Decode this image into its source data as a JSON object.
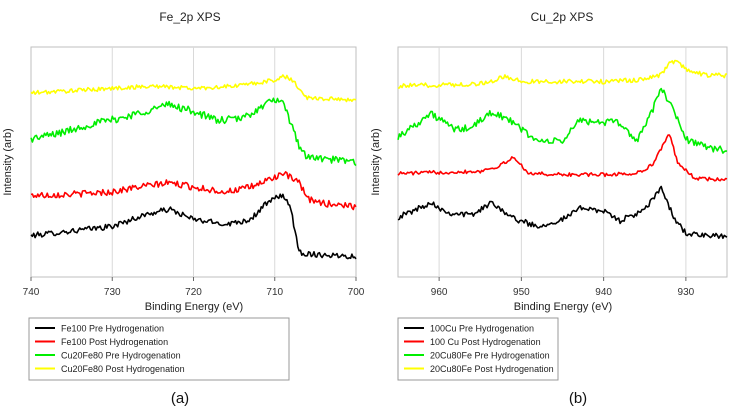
{
  "chart_data": [
    {
      "type": "line",
      "title": "Fe_2p XPS",
      "xlabel": "Binding Energy (eV)",
      "ylabel": "Intensity (arb)",
      "xlim": [
        740,
        700
      ],
      "x_reversed": true,
      "xticks": [
        "740",
        "730",
        "720",
        "710",
        "700"
      ],
      "ylim": [
        0,
        10
      ],
      "grid": true,
      "panel_label": "(a)",
      "legend_position": "bottom-below",
      "series": [
        {
          "name": "Fe100 Pre Hydrogenation",
          "color": "#000000",
          "noise": 0.12,
          "x": [
            740,
            735,
            730,
            726,
            723,
            720,
            716,
            713,
            711,
            709,
            708,
            707,
            706,
            703,
            700
          ],
          "y": [
            1.8,
            2.0,
            2.2,
            2.7,
            2.95,
            2.5,
            2.3,
            2.5,
            3.2,
            3.6,
            2.9,
            1.1,
            1.0,
            0.95,
            0.9
          ]
        },
        {
          "name": "Fe100 Post Hydrogenation",
          "color": "#ff0000",
          "noise": 0.14,
          "x": [
            740,
            735,
            730,
            727,
            723,
            719,
            716,
            713,
            711,
            709,
            707,
            706,
            704,
            702,
            700
          ],
          "y": [
            3.55,
            3.6,
            3.7,
            3.9,
            4.1,
            3.85,
            3.7,
            3.9,
            4.2,
            4.5,
            4.1,
            3.4,
            3.2,
            3.15,
            3.05
          ]
        },
        {
          "name": "Cu20Fe80 Pre Hydrogenation",
          "color": "#00ee00",
          "noise": 0.16,
          "x": [
            740,
            736,
            732,
            729,
            726,
            723,
            720,
            717,
            714,
            712,
            710,
            709,
            708,
            707,
            706,
            703,
            700
          ],
          "y": [
            6.0,
            6.3,
            6.7,
            6.9,
            7.2,
            7.5,
            7.2,
            6.8,
            6.9,
            7.3,
            7.75,
            7.5,
            6.7,
            5.7,
            5.2,
            5.1,
            5.0
          ]
        },
        {
          "name": "Cu20Fe80 Post Hydrogenation",
          "color": "#ffff00",
          "noise": 0.09,
          "x": [
            740,
            735,
            730,
            725,
            720,
            715,
            712,
            710,
            709,
            708,
            707,
            706,
            704,
            700
          ],
          "y": [
            8.0,
            8.1,
            8.2,
            8.3,
            8.2,
            8.3,
            8.45,
            8.55,
            8.75,
            8.6,
            8.2,
            7.8,
            7.75,
            7.7
          ]
        }
      ]
    },
    {
      "type": "line",
      "title": "Cu_2p XPS",
      "xlabel": "Binding Energy (eV)",
      "ylabel": "Intensity (arb)",
      "xlim": [
        965,
        925
      ],
      "x_reversed": true,
      "xticks": [
        "960",
        "950",
        "940",
        "930"
      ],
      "ylim": [
        0,
        10
      ],
      "grid": true,
      "panel_label": "(b)",
      "legend_position": "bottom-below",
      "series": [
        {
          "name": "100Cu Pre Hydrogenation",
          "color": "#000000",
          "noise": 0.12,
          "x": [
            965,
            963,
            961,
            959,
            956,
            953.5,
            951,
            948,
            945,
            942.5,
            940,
            938,
            935,
            933,
            931.5,
            930,
            928,
            925
          ],
          "y": [
            2.6,
            2.9,
            3.25,
            2.8,
            2.7,
            3.25,
            2.55,
            2.2,
            2.5,
            3.05,
            2.85,
            2.45,
            2.9,
            3.9,
            2.6,
            1.9,
            1.8,
            1.75
          ]
        },
        {
          "name": "100 Cu Post Hydrogenation",
          "color": "#ff0000",
          "noise": 0.08,
          "x": [
            965,
            960,
            955,
            952.5,
            951,
            949,
            945,
            940,
            936,
            934,
            933,
            932,
            931,
            929,
            925
          ],
          "y": [
            4.5,
            4.55,
            4.6,
            4.85,
            5.2,
            4.5,
            4.45,
            4.45,
            4.5,
            4.9,
            5.6,
            6.2,
            5.0,
            4.3,
            4.2
          ]
        },
        {
          "name": "20Cu80Fe Pre Hydrogenation",
          "color": "#00ee00",
          "noise": 0.15,
          "x": [
            965,
            963,
            961,
            958,
            956,
            953.5,
            951,
            948,
            945,
            943,
            941,
            938,
            936,
            934,
            933,
            931.5,
            930,
            927,
            925
          ],
          "y": [
            6.1,
            6.6,
            7.1,
            6.4,
            6.5,
            7.2,
            6.7,
            5.9,
            5.9,
            6.8,
            6.75,
            6.7,
            5.9,
            7.3,
            8.2,
            7.3,
            6.0,
            5.6,
            5.5
          ]
        },
        {
          "name": "20Cu80Fe Post Hydrogenation",
          "color": "#ffff00",
          "noise": 0.1,
          "x": [
            965,
            960,
            955,
            952,
            950,
            945,
            940,
            936,
            933,
            932,
            931,
            930,
            928,
            925
          ],
          "y": [
            8.3,
            8.35,
            8.4,
            8.7,
            8.5,
            8.5,
            8.5,
            8.55,
            8.8,
            9.3,
            9.4,
            9.0,
            8.8,
            8.75
          ]
        }
      ]
    }
  ]
}
